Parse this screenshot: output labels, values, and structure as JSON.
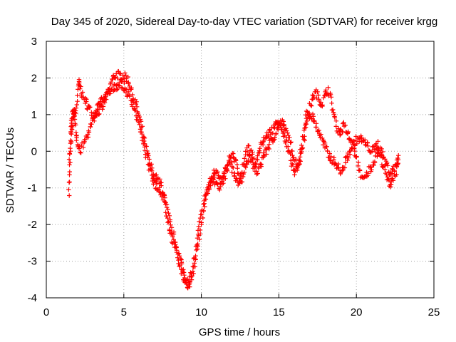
{
  "chart_data": {
    "type": "scatter",
    "title": "Day 345 of 2020, Sidereal Day-to-day VTEC variation (SDTVAR) for receiver krgg",
    "xlabel": "GPS time / hours",
    "ylabel": "SDTVAR / TECUs",
    "xlim": [
      0,
      25
    ],
    "ylim": [
      -4,
      3
    ],
    "xticks": [
      0,
      5,
      10,
      15,
      20,
      25
    ],
    "yticks": [
      -4,
      -3,
      -2,
      -1,
      0,
      1,
      2,
      3
    ],
    "grid": true,
    "marker": "+",
    "series": [
      {
        "name": "SDTVAR",
        "color": "#ff0000",
        "lines": [
          [
            [
              1.45,
              -1.1
            ],
            [
              1.5,
              -0.6
            ],
            [
              1.55,
              0.2
            ],
            [
              1.6,
              0.7
            ],
            [
              1.7,
              1.05
            ],
            [
              1.85,
              0.9
            ],
            [
              2.0,
              1.4
            ],
            [
              2.1,
              1.9
            ],
            [
              2.2,
              1.7
            ],
            [
              2.4,
              1.45
            ],
            [
              2.6,
              1.3
            ],
            [
              2.8,
              1.15
            ],
            [
              3.0,
              1.0
            ],
            [
              3.2,
              1.05
            ],
            [
              3.4,
              1.1
            ],
            [
              3.6,
              1.2
            ],
            [
              3.8,
              1.4
            ],
            [
              4.0,
              1.6
            ],
            [
              4.2,
              1.9
            ],
            [
              4.4,
              2.05
            ],
            [
              4.6,
              2.1
            ],
            [
              4.8,
              2.05
            ],
            [
              5.0,
              2.05
            ],
            [
              5.2,
              2.0
            ],
            [
              5.4,
              1.8
            ],
            [
              5.6,
              1.5
            ],
            [
              5.8,
              1.25
            ],
            [
              6.0,
              0.9
            ],
            [
              6.2,
              0.5
            ],
            [
              6.4,
              0.1
            ],
            [
              6.6,
              -0.2
            ],
            [
              6.8,
              -0.5
            ],
            [
              7.0,
              -0.7
            ],
            [
              7.2,
              -0.8
            ],
            [
              7.4,
              -0.9
            ],
            [
              7.6,
              -1.2
            ],
            [
              7.8,
              -1.6
            ],
            [
              8.0,
              -2.0
            ],
            [
              8.2,
              -2.3
            ],
            [
              8.4,
              -2.6
            ],
            [
              8.6,
              -2.9
            ],
            [
              8.8,
              -3.2
            ],
            [
              9.0,
              -3.5
            ],
            [
              9.2,
              -3.6
            ],
            [
              9.4,
              -3.3
            ],
            [
              9.6,
              -2.8
            ],
            [
              9.8,
              -2.2
            ],
            [
              10.0,
              -1.7
            ],
            [
              10.2,
              -1.3
            ],
            [
              10.4,
              -1.0
            ],
            [
              10.6,
              -0.8
            ],
            [
              10.8,
              -0.6
            ],
            [
              11.0,
              -0.5
            ],
            [
              11.2,
              -0.7
            ],
            [
              11.4,
              -0.9
            ],
            [
              11.6,
              -0.6
            ],
            [
              11.8,
              -0.3
            ],
            [
              12.0,
              -0.1
            ],
            [
              12.2,
              -0.3
            ],
            [
              12.4,
              -0.6
            ],
            [
              12.6,
              -0.8
            ],
            [
              12.8,
              -0.5
            ],
            [
              13.0,
              -0.2
            ],
            [
              13.2,
              0.0
            ],
            [
              13.4,
              -0.3
            ],
            [
              13.6,
              -0.6
            ],
            [
              13.8,
              -0.4
            ],
            [
              14.0,
              -0.1
            ],
            [
              14.2,
              0.0
            ],
            [
              14.4,
              0.2
            ],
            [
              14.6,
              0.3
            ],
            [
              14.8,
              0.5
            ],
            [
              15.0,
              0.7
            ],
            [
              15.2,
              0.8
            ],
            [
              15.4,
              0.6
            ],
            [
              15.6,
              0.4
            ],
            [
              15.8,
              0.1
            ],
            [
              16.0,
              -0.2
            ],
            [
              16.2,
              -0.4
            ],
            [
              16.4,
              -0.2
            ],
            [
              16.6,
              0.3
            ],
            [
              16.8,
              0.8
            ],
            [
              17.0,
              1.2
            ],
            [
              17.2,
              1.5
            ],
            [
              17.4,
              1.6
            ],
            [
              17.6,
              1.4
            ],
            [
              17.8,
              1.3
            ],
            [
              18.0,
              1.55
            ],
            [
              18.2,
              1.7
            ],
            [
              18.4,
              1.3
            ],
            [
              18.6,
              0.9
            ],
            [
              18.8,
              0.6
            ],
            [
              19.0,
              0.5
            ],
            [
              19.2,
              0.7
            ],
            [
              19.4,
              0.5
            ],
            [
              19.6,
              0.3
            ],
            [
              19.8,
              0.1
            ],
            [
              20.0,
              -0.2
            ],
            [
              20.2,
              -0.5
            ],
            [
              20.4,
              -0.8
            ],
            [
              20.6,
              -0.7
            ],
            [
              20.8,
              -0.5
            ],
            [
              21.0,
              -0.4
            ],
            [
              21.2,
              -0.2
            ],
            [
              21.4,
              0.0
            ],
            [
              21.6,
              -0.2
            ],
            [
              21.8,
              -0.5
            ],
            [
              22.0,
              -0.8
            ],
            [
              22.2,
              -0.9
            ],
            [
              22.4,
              -0.7
            ],
            [
              22.6,
              -0.5
            ],
            [
              22.75,
              -0.3
            ]
          ],
          [
            [
              1.5,
              -0.3
            ],
            [
              1.6,
              0.3
            ],
            [
              1.7,
              0.8
            ],
            [
              1.8,
              1.2
            ],
            [
              1.9,
              0.6
            ],
            [
              2.0,
              0.2
            ],
            [
              2.2,
              0.0
            ],
            [
              2.4,
              0.2
            ],
            [
              2.6,
              0.4
            ],
            [
              2.8,
              0.6
            ],
            [
              3.0,
              0.8
            ],
            [
              3.2,
              1.1
            ],
            [
              3.4,
              1.3
            ],
            [
              3.6,
              1.4
            ],
            [
              3.8,
              1.5
            ],
            [
              4.0,
              1.55
            ],
            [
              4.2,
              1.65
            ],
            [
              4.4,
              1.75
            ],
            [
              4.6,
              1.8
            ],
            [
              4.8,
              1.85
            ],
            [
              5.0,
              1.75
            ],
            [
              5.2,
              1.6
            ],
            [
              5.4,
              1.45
            ],
            [
              5.6,
              1.3
            ],
            [
              5.8,
              1.0
            ],
            [
              6.0,
              0.7
            ],
            [
              6.2,
              0.3
            ],
            [
              6.4,
              0.0
            ],
            [
              6.6,
              -0.4
            ],
            [
              6.8,
              -0.65
            ],
            [
              7.0,
              -0.9
            ],
            [
              7.2,
              -1.0
            ],
            [
              7.4,
              -1.1
            ],
            [
              7.6,
              -1.3
            ],
            [
              7.8,
              -1.8
            ],
            [
              8.0,
              -2.2
            ],
            [
              8.2,
              -2.5
            ],
            [
              8.4,
              -2.7
            ],
            [
              8.6,
              -3.1
            ],
            [
              8.8,
              -3.4
            ],
            [
              9.0,
              -3.55
            ],
            [
              9.2,
              -3.7
            ],
            [
              9.4,
              -3.4
            ],
            [
              9.6,
              -3.0
            ],
            [
              9.8,
              -2.5
            ],
            [
              10.0,
              -2.0
            ],
            [
              10.2,
              -1.5
            ],
            [
              10.4,
              -1.1
            ],
            [
              10.6,
              -0.9
            ],
            [
              10.8,
              -0.8
            ],
            [
              11.0,
              -0.9
            ],
            [
              11.2,
              -1.0
            ],
            [
              11.4,
              -0.7
            ],
            [
              11.6,
              -0.4
            ],
            [
              11.8,
              -0.2
            ],
            [
              12.0,
              -0.5
            ],
            [
              12.2,
              -0.8
            ],
            [
              12.4,
              -0.9
            ],
            [
              12.6,
              -0.6
            ],
            [
              12.8,
              -0.2
            ],
            [
              13.0,
              0.1
            ],
            [
              13.2,
              -0.2
            ],
            [
              13.4,
              -0.5
            ],
            [
              13.6,
              -0.2
            ],
            [
              13.8,
              0.1
            ],
            [
              14.0,
              0.3
            ],
            [
              14.2,
              0.4
            ],
            [
              14.4,
              0.5
            ],
            [
              14.6,
              0.6
            ],
            [
              14.8,
              0.75
            ],
            [
              15.0,
              0.85
            ],
            [
              15.2,
              0.6
            ],
            [
              15.4,
              0.3
            ],
            [
              15.6,
              0.0
            ],
            [
              15.8,
              -0.3
            ],
            [
              16.0,
              -0.6
            ],
            [
              16.2,
              -0.5
            ],
            [
              16.4,
              0.0
            ],
            [
              16.6,
              0.6
            ],
            [
              16.8,
              1.0
            ],
            [
              17.0,
              1.0
            ],
            [
              17.2,
              0.9
            ],
            [
              17.4,
              0.7
            ],
            [
              17.6,
              0.5
            ],
            [
              17.8,
              0.3
            ],
            [
              18.0,
              0.1
            ],
            [
              18.2,
              -0.1
            ],
            [
              18.4,
              -0.2
            ],
            [
              18.6,
              -0.3
            ],
            [
              18.8,
              -0.4
            ],
            [
              19.0,
              -0.6
            ],
            [
              19.2,
              -0.4
            ],
            [
              19.4,
              -0.2
            ],
            [
              19.6,
              0.0
            ],
            [
              19.8,
              0.2
            ],
            [
              20.0,
              0.3
            ],
            [
              20.2,
              0.35
            ],
            [
              20.4,
              0.3
            ],
            [
              20.6,
              0.2
            ],
            [
              20.8,
              0.1
            ],
            [
              21.0,
              0.0
            ],
            [
              21.2,
              0.1
            ],
            [
              21.4,
              0.2
            ],
            [
              21.6,
              0.0
            ],
            [
              21.8,
              -0.2
            ],
            [
              22.0,
              -0.4
            ],
            [
              22.2,
              -0.6
            ],
            [
              22.4,
              -0.5
            ],
            [
              22.6,
              -0.3
            ],
            [
              22.75,
              -0.2
            ]
          ]
        ]
      }
    ]
  }
}
